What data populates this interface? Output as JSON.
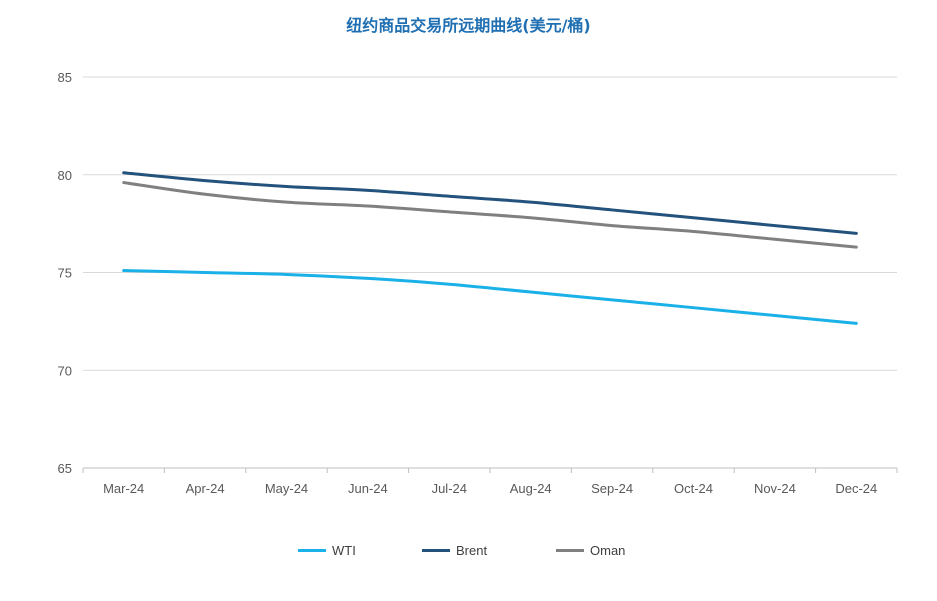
{
  "chart_data": {
    "type": "line",
    "title": "纽约商品交易所远期曲线(美元/桶)",
    "xlabel": "",
    "ylabel": "",
    "categories": [
      "Mar-24",
      "Apr-24",
      "May-24",
      "Jun-24",
      "Jul-24",
      "Aug-24",
      "Sep-24",
      "Oct-24",
      "Nov-24",
      "Dec-24"
    ],
    "ylim": [
      65,
      85
    ],
    "yticks": [
      65,
      70,
      75,
      80,
      85
    ],
    "grid": true,
    "legend_position": "bottom",
    "series": [
      {
        "name": "WTI",
        "color": "#1ab0e8",
        "values": [
          75.1,
          75.0,
          74.9,
          74.7,
          74.4,
          74.0,
          73.6,
          73.2,
          72.8,
          72.4
        ]
      },
      {
        "name": "Brent",
        "color": "#23527c",
        "values": [
          80.1,
          79.7,
          79.4,
          79.2,
          78.9,
          78.6,
          78.2,
          77.8,
          77.4,
          77.0
        ]
      },
      {
        "name": "Oman",
        "color": "#808080",
        "values": [
          79.6,
          79.0,
          78.6,
          78.4,
          78.1,
          77.8,
          77.4,
          77.1,
          76.7,
          76.3
        ]
      }
    ]
  }
}
